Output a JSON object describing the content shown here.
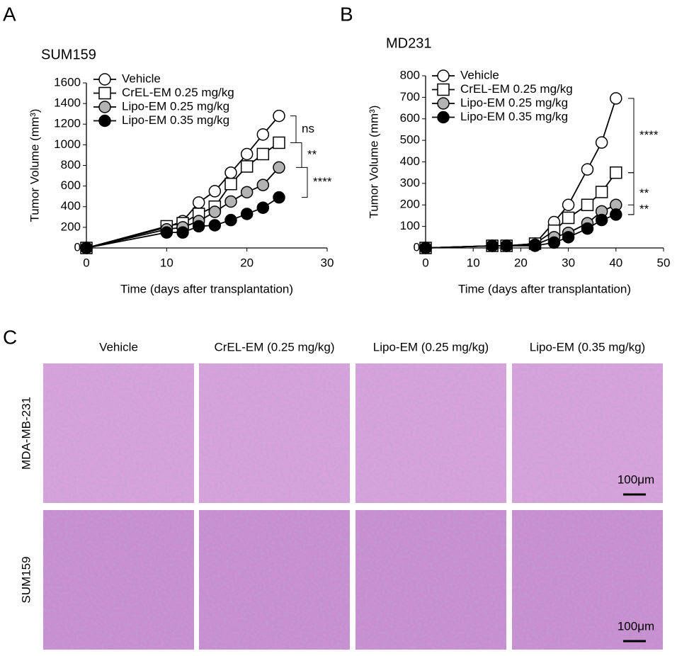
{
  "panel_letters": [
    "A",
    "B",
    "C"
  ],
  "chart_data": [
    {
      "type": "line",
      "title": "SUM159",
      "x_label": "Time (days after transplantation)",
      "y_label": "Tumor Volume (mm³)",
      "x": [
        0,
        10,
        12,
        14,
        16,
        18,
        20,
        22,
        24
      ],
      "series": [
        {
          "name": "Vehicle",
          "color": "#ffffff",
          "marker": "circle",
          "values": [
            0,
            200,
            260,
            440,
            550,
            730,
            910,
            1100,
            1280
          ]
        },
        {
          "name": "CrEL-EM 0.25 mg/kg",
          "color": "#ffffff",
          "marker": "square",
          "values": [
            0,
            210,
            240,
            330,
            400,
            620,
            790,
            910,
            1020
          ]
        },
        {
          "name": "Lipo-EM 0.25 mg/kg",
          "color": "#b3b3b3",
          "marker": "circle",
          "values": [
            0,
            180,
            200,
            260,
            350,
            450,
            540,
            610,
            780
          ]
        },
        {
          "name": "Lipo-EM 0.35 mg/kg",
          "color": "#000000",
          "marker": "circle",
          "values": [
            0,
            150,
            150,
            210,
            220,
            270,
            330,
            390,
            490
          ]
        }
      ],
      "xlim": [
        0,
        30
      ],
      "xticks": [
        0,
        10,
        20,
        30
      ],
      "ylim": [
        0,
        1600
      ],
      "yticks": [
        0,
        200,
        400,
        600,
        800,
        1000,
        1200,
        1400,
        1600
      ],
      "annotations": [
        "ns",
        "**",
        "****"
      ]
    },
    {
      "type": "line",
      "title": "MD231",
      "x_label": "Time (days after transplantation)",
      "y_label": "Tumor Volume (mm³)",
      "x": [
        0,
        14,
        17,
        23,
        27,
        30,
        34,
        37,
        40
      ],
      "series": [
        {
          "name": "Vehicle",
          "color": "#ffffff",
          "marker": "circle",
          "values": [
            0,
            10,
            10,
            20,
            120,
            200,
            365,
            490,
            695
          ]
        },
        {
          "name": "CrEL-EM 0.25 mg/kg",
          "color": "#ffffff",
          "marker": "square",
          "values": [
            0,
            10,
            10,
            20,
            80,
            140,
            200,
            260,
            350
          ]
        },
        {
          "name": "Lipo-EM 0.25 mg/kg",
          "color": "#b3b3b3",
          "marker": "circle",
          "values": [
            0,
            10,
            10,
            15,
            50,
            70,
            115,
            170,
            200
          ]
        },
        {
          "name": "Lipo-EM 0.35 mg/kg",
          "color": "#000000",
          "marker": "circle",
          "values": [
            0,
            10,
            10,
            10,
            25,
            50,
            90,
            130,
            155
          ]
        }
      ],
      "xlim": [
        0,
        50
      ],
      "xticks": [
        0,
        10,
        20,
        30,
        40,
        50
      ],
      "ylim": [
        0,
        800
      ],
      "yticks": [
        0,
        100,
        200,
        300,
        400,
        500,
        600,
        700,
        800
      ],
      "annotations": [
        "****",
        "**",
        "**"
      ]
    }
  ],
  "histology": {
    "columns": [
      "Vehicle",
      "CrEL-EM (0.25 mg/kg)",
      "Lipo-EM (0.25 mg/kg)",
      "Lipo-EM (0.35 mg/kg)"
    ],
    "rows": [
      "MDA-MB-231",
      "SUM159"
    ],
    "scale_bar": "100μm"
  }
}
